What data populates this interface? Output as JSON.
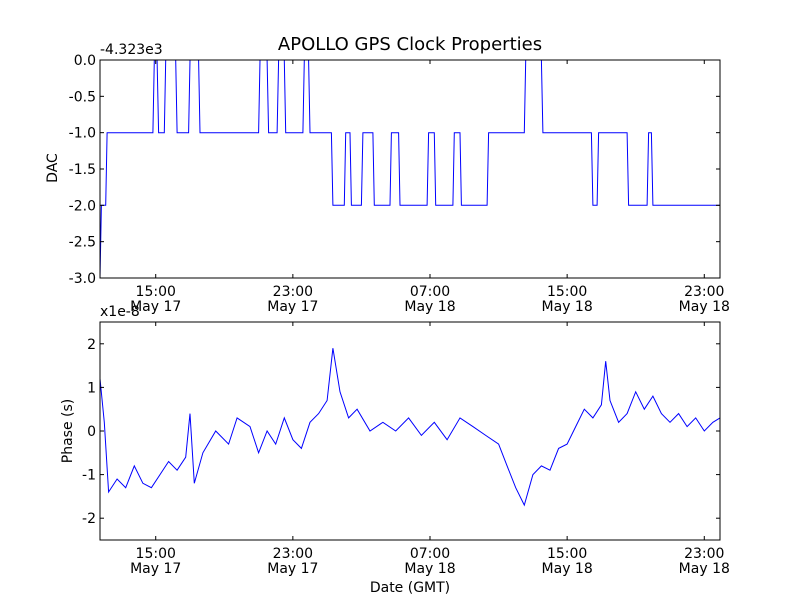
{
  "figure": {
    "title": "APOLLO GPS Clock Properties",
    "line_color": "#0000ff"
  },
  "chart_data": [
    {
      "type": "line",
      "ylabel": "DAC",
      "xlabel": "",
      "y_offset_label": "-4.323e3",
      "ylim": [
        -3.0,
        0.0
      ],
      "xlim": [
        "2012-05-17T11:45",
        "2012-05-18T23:55"
      ],
      "x_ticks": [
        {
          "date": "2012-05-17T15:00",
          "label1": "15:00",
          "label2": "May 17"
        },
        {
          "date": "2012-05-17T23:00",
          "label1": "23:00",
          "label2": "May 17"
        },
        {
          "date": "2012-05-18T07:00",
          "label1": "07:00",
          "label2": "May 18"
        },
        {
          "date": "2012-05-18T15:00",
          "label1": "15:00",
          "label2": "May 18"
        },
        {
          "date": "2012-05-18T23:00",
          "label1": "23:00",
          "label2": "May 18"
        }
      ],
      "y_ticks": [
        {
          "value": 0.0,
          "label": "0.0"
        },
        {
          "value": -0.5,
          "label": "-0.5"
        },
        {
          "value": -1.0,
          "label": "-1.0"
        },
        {
          "value": -1.5,
          "label": "-1.5"
        },
        {
          "value": -2.0,
          "label": "-2.0"
        },
        {
          "value": -2.5,
          "label": "-2.5"
        },
        {
          "value": -3.0,
          "label": "-3.0"
        }
      ],
      "series": [
        {
          "points": [
            [
              "2012-05-17T11:45",
              -3.0
            ],
            [
              "2012-05-17T11:50",
              -2.0
            ],
            [
              "2012-05-17T12:05",
              -2.0
            ],
            [
              "2012-05-17T12:10",
              -1.0
            ],
            [
              "2012-05-17T14:50",
              -1.0
            ],
            [
              "2012-05-17T14:55",
              0.0
            ],
            [
              "2012-05-17T15:05",
              0.0
            ],
            [
              "2012-05-17T15:10",
              -1.0
            ],
            [
              "2012-05-17T15:30",
              -1.0
            ],
            [
              "2012-05-17T15:35",
              0.0
            ],
            [
              "2012-05-17T16:10",
              0.0
            ],
            [
              "2012-05-17T16:15",
              -1.0
            ],
            [
              "2012-05-17T16:55",
              -1.0
            ],
            [
              "2012-05-17T17:00",
              0.0
            ],
            [
              "2012-05-17T17:30",
              0.0
            ],
            [
              "2012-05-17T17:35",
              -1.0
            ],
            [
              "2012-05-17T21:00",
              -1.0
            ],
            [
              "2012-05-17T21:05",
              0.0
            ],
            [
              "2012-05-17T21:30",
              0.0
            ],
            [
              "2012-05-17T21:35",
              -1.0
            ],
            [
              "2012-05-17T22:05",
              -1.0
            ],
            [
              "2012-05-17T22:10",
              0.0
            ],
            [
              "2012-05-17T22:30",
              0.0
            ],
            [
              "2012-05-17T22:35",
              -1.0
            ],
            [
              "2012-05-17T23:35",
              -1.0
            ],
            [
              "2012-05-17T23:40",
              0.0
            ],
            [
              "2012-05-17T23:55",
              0.0
            ],
            [
              "2012-05-18T00:00",
              -1.0
            ],
            [
              "2012-05-18T01:15",
              -1.0
            ],
            [
              "2012-05-18T01:20",
              -2.0
            ],
            [
              "2012-05-18T02:00",
              -2.0
            ],
            [
              "2012-05-18T02:05",
              -1.0
            ],
            [
              "2012-05-18T02:20",
              -1.0
            ],
            [
              "2012-05-18T02:25",
              -2.0
            ],
            [
              "2012-05-18T03:00",
              -2.0
            ],
            [
              "2012-05-18T03:05",
              -1.0
            ],
            [
              "2012-05-18T03:40",
              -1.0
            ],
            [
              "2012-05-18T03:45",
              -2.0
            ],
            [
              "2012-05-18T04:40",
              -2.0
            ],
            [
              "2012-05-18T04:45",
              -1.0
            ],
            [
              "2012-05-18T05:10",
              -1.0
            ],
            [
              "2012-05-18T05:15",
              -2.0
            ],
            [
              "2012-05-18T06:50",
              -2.0
            ],
            [
              "2012-05-18T06:55",
              -1.0
            ],
            [
              "2012-05-18T07:15",
              -1.0
            ],
            [
              "2012-05-18T07:20",
              -2.0
            ],
            [
              "2012-05-18T08:20",
              -2.0
            ],
            [
              "2012-05-18T08:25",
              -1.0
            ],
            [
              "2012-05-18T08:45",
              -1.0
            ],
            [
              "2012-05-18T08:50",
              -2.0
            ],
            [
              "2012-05-18T10:20",
              -2.0
            ],
            [
              "2012-05-18T10:25",
              -1.0
            ],
            [
              "2012-05-18T12:30",
              -1.0
            ],
            [
              "2012-05-18T12:35",
              0.0
            ],
            [
              "2012-05-18T13:30",
              0.0
            ],
            [
              "2012-05-18T13:35",
              -1.0
            ],
            [
              "2012-05-18T16:25",
              -1.0
            ],
            [
              "2012-05-18T16:30",
              -2.0
            ],
            [
              "2012-05-18T16:45",
              -2.0
            ],
            [
              "2012-05-18T16:50",
              -1.0
            ],
            [
              "2012-05-18T18:30",
              -1.0
            ],
            [
              "2012-05-18T18:35",
              -2.0
            ],
            [
              "2012-05-18T19:40",
              -2.0
            ],
            [
              "2012-05-18T19:45",
              -1.0
            ],
            [
              "2012-05-18T19:55",
              -1.0
            ],
            [
              "2012-05-18T20:00",
              -2.0
            ],
            [
              "2012-05-18T23:55",
              -2.0
            ]
          ]
        }
      ]
    },
    {
      "type": "line",
      "ylabel": "Phase (s)",
      "xlabel": "Date (GMT)",
      "y_offset_label": "x1e-8",
      "ylim": [
        -2.5,
        2.5
      ],
      "xlim": [
        "2012-05-17T11:45",
        "2012-05-18T23:55"
      ],
      "x_ticks": [
        {
          "date": "2012-05-17T15:00",
          "label1": "15:00",
          "label2": "May 17"
        },
        {
          "date": "2012-05-17T23:00",
          "label1": "23:00",
          "label2": "May 17"
        },
        {
          "date": "2012-05-18T07:00",
          "label1": "07:00",
          "label2": "May 18"
        },
        {
          "date": "2012-05-18T15:00",
          "label1": "15:00",
          "label2": "May 18"
        },
        {
          "date": "2012-05-18T23:00",
          "label1": "23:00",
          "label2": "May 18"
        }
      ],
      "y_ticks": [
        {
          "value": 2,
          "label": "2"
        },
        {
          "value": 1,
          "label": "1"
        },
        {
          "value": 0,
          "label": "0"
        },
        {
          "value": -1,
          "label": "-1"
        },
        {
          "value": -2,
          "label": "-2"
        }
      ],
      "series": [
        {
          "points": [
            [
              "2012-05-17T11:45",
              1.2
            ],
            [
              "2012-05-17T12:00",
              0.2
            ],
            [
              "2012-05-17T12:15",
              -1.4
            ],
            [
              "2012-05-17T12:45",
              -1.1
            ],
            [
              "2012-05-17T13:15",
              -1.3
            ],
            [
              "2012-05-17T13:45",
              -0.8
            ],
            [
              "2012-05-17T14:15",
              -1.2
            ],
            [
              "2012-05-17T14:45",
              -1.3
            ],
            [
              "2012-05-17T15:15",
              -1.0
            ],
            [
              "2012-05-17T15:45",
              -0.7
            ],
            [
              "2012-05-17T16:15",
              -0.9
            ],
            [
              "2012-05-17T16:45",
              -0.6
            ],
            [
              "2012-05-17T17:00",
              0.4
            ],
            [
              "2012-05-17T17:15",
              -1.2
            ],
            [
              "2012-05-17T17:45",
              -0.5
            ],
            [
              "2012-05-17T18:30",
              0.0
            ],
            [
              "2012-05-17T19:15",
              -0.3
            ],
            [
              "2012-05-17T19:45",
              0.3
            ],
            [
              "2012-05-17T20:30",
              0.1
            ],
            [
              "2012-05-17T21:00",
              -0.5
            ],
            [
              "2012-05-17T21:30",
              0.0
            ],
            [
              "2012-05-17T22:00",
              -0.3
            ],
            [
              "2012-05-17T22:30",
              0.3
            ],
            [
              "2012-05-17T23:00",
              -0.2
            ],
            [
              "2012-05-17T23:30",
              -0.4
            ],
            [
              "2012-05-18T00:00",
              0.2
            ],
            [
              "2012-05-18T00:30",
              0.4
            ],
            [
              "2012-05-18T01:00",
              0.7
            ],
            [
              "2012-05-18T01:20",
              1.9
            ],
            [
              "2012-05-18T01:45",
              0.9
            ],
            [
              "2012-05-18T02:15",
              0.3
            ],
            [
              "2012-05-18T02:45",
              0.5
            ],
            [
              "2012-05-18T03:30",
              0.0
            ],
            [
              "2012-05-18T04:15",
              0.2
            ],
            [
              "2012-05-18T05:00",
              0.0
            ],
            [
              "2012-05-18T05:45",
              0.3
            ],
            [
              "2012-05-18T06:30",
              -0.1
            ],
            [
              "2012-05-18T07:15",
              0.2
            ],
            [
              "2012-05-18T08:00",
              -0.2
            ],
            [
              "2012-05-18T08:45",
              0.3
            ],
            [
              "2012-05-18T09:30",
              0.1
            ],
            [
              "2012-05-18T10:15",
              -0.1
            ],
            [
              "2012-05-18T11:00",
              -0.3
            ],
            [
              "2012-05-18T11:30",
              -0.8
            ],
            [
              "2012-05-18T12:00",
              -1.3
            ],
            [
              "2012-05-18T12:30",
              -1.7
            ],
            [
              "2012-05-18T13:00",
              -1.0
            ],
            [
              "2012-05-18T13:30",
              -0.8
            ],
            [
              "2012-05-18T14:00",
              -0.9
            ],
            [
              "2012-05-18T14:30",
              -0.4
            ],
            [
              "2012-05-18T15:00",
              -0.3
            ],
            [
              "2012-05-18T15:30",
              0.1
            ],
            [
              "2012-05-18T16:00",
              0.5
            ],
            [
              "2012-05-18T16:30",
              0.3
            ],
            [
              "2012-05-18T17:00",
              0.6
            ],
            [
              "2012-05-18T17:15",
              1.6
            ],
            [
              "2012-05-18T17:30",
              0.7
            ],
            [
              "2012-05-18T18:00",
              0.2
            ],
            [
              "2012-05-18T18:30",
              0.4
            ],
            [
              "2012-05-18T19:00",
              0.9
            ],
            [
              "2012-05-18T19:30",
              0.5
            ],
            [
              "2012-05-18T20:00",
              0.8
            ],
            [
              "2012-05-18T20:30",
              0.4
            ],
            [
              "2012-05-18T21:00",
              0.2
            ],
            [
              "2012-05-18T21:30",
              0.4
            ],
            [
              "2012-05-18T22:00",
              0.1
            ],
            [
              "2012-05-18T22:30",
              0.3
            ],
            [
              "2012-05-18T23:00",
              0.0
            ],
            [
              "2012-05-18T23:30",
              0.2
            ],
            [
              "2012-05-18T23:55",
              0.3
            ]
          ]
        }
      ]
    }
  ]
}
